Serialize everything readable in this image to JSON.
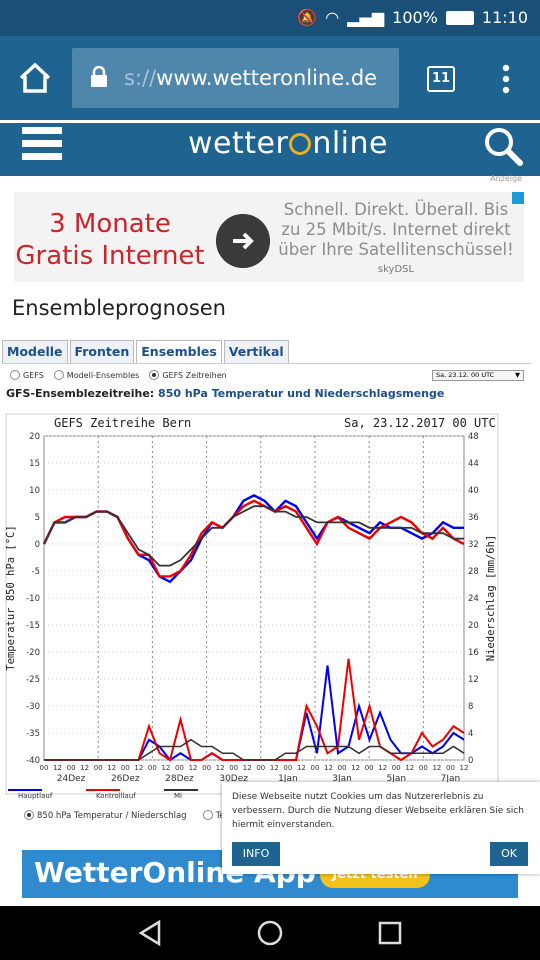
{
  "status": {
    "battery_pct": "100%",
    "time": "11:10"
  },
  "browser": {
    "url_prefix": "s://",
    "url_host": "www.wetteronline.de",
    "tab_count": "11"
  },
  "site": {
    "logo_text": "wetteronline"
  },
  "ad": {
    "label": "Anzeige",
    "left_line1": "3 Monate",
    "left_line2": "Gratis Internet",
    "right_text": "Schnell. Direkt. Überall. Bis zu 25 Mbit/s. Internet direkt über Ihre Satellitenschüssel!",
    "brand": "skyDSL"
  },
  "page_title": "Ensembleprognosen",
  "tabs": [
    {
      "label": "Modelle"
    },
    {
      "label": "Fronten"
    },
    {
      "label": "Ensembles"
    },
    {
      "label": "Vertikal"
    }
  ],
  "radio_options": [
    {
      "label": "GEFS",
      "selected": false
    },
    {
      "label": "Modell-Ensembles",
      "selected": false
    },
    {
      "label": "GEFS Zeitreihen",
      "selected": true
    }
  ],
  "date_select": "Sa, 23.12. 00 UTC",
  "subheading": {
    "prefix": "GFS-Ensemblezeitreihe:",
    "value": "850 hPa Temperatur und Niederschlagsmenge"
  },
  "chart_data": {
    "type": "line",
    "title": "GEFS Zeitreihe Bern",
    "date": "Sa, 23.12.2017 00 UTC",
    "ylabel_left": "Temperatur 850 hPa [°C]",
    "ylabel_right": "Niederschlag [mm/6h]",
    "ylim_left": [
      -40,
      20
    ],
    "ylim_right": [
      0,
      48
    ],
    "yticks_left": [
      20,
      15,
      10,
      5,
      0,
      -5,
      -10,
      -15,
      -20,
      -25,
      -30,
      -35,
      -40
    ],
    "yticks_right": [
      48,
      44,
      40,
      36,
      32,
      28,
      24,
      20,
      16,
      12,
      8,
      4,
      0
    ],
    "day_labels": [
      "24Dez",
      "26Dez",
      "28Dez",
      "30Dez",
      "1Jan",
      "3Jan",
      "5Jan",
      "7Jan"
    ],
    "hour_labels": [
      "00",
      "12",
      "00",
      "12",
      "00",
      "12",
      "00",
      "12",
      "00",
      "12",
      "00",
      "12",
      "00",
      "12",
      "00",
      "12",
      "00",
      "12",
      "00",
      "12",
      "00",
      "12",
      "00",
      "12",
      "00",
      "12",
      "00",
      "12",
      "00",
      "12",
      "00",
      "12"
    ],
    "temperature_series": [
      {
        "name": "Hauptlauf",
        "color": "#0000ee",
        "values": [
          0,
          4,
          4,
          5,
          5,
          6,
          6,
          5,
          1,
          -2,
          -3,
          -6,
          -7,
          -5,
          -3,
          1,
          4,
          3,
          5,
          8,
          9,
          8,
          6,
          8,
          7,
          4,
          1,
          4,
          5,
          4,
          3,
          2,
          4,
          3,
          3,
          2,
          1,
          2,
          4,
          3,
          3
        ]
      },
      {
        "name": "Kontrolllauf",
        "color": "#ee0000",
        "values": [
          0,
          4,
          5,
          5,
          5,
          6,
          6,
          5,
          1,
          -2,
          -2,
          -6,
          -6,
          -5,
          -2,
          2,
          4,
          3,
          5,
          7,
          8,
          7,
          6,
          7,
          6,
          3,
          0,
          4,
          5,
          3,
          2,
          1,
          3,
          4,
          5,
          4,
          2,
          1,
          3,
          1,
          0
        ]
      },
      {
        "name": "Mittel",
        "color": "#333333",
        "values": [
          0,
          4,
          4,
          5,
          5,
          6,
          6,
          5,
          2,
          -1,
          -2,
          -4,
          -4,
          -3,
          -1,
          1,
          3,
          3,
          5,
          6,
          7,
          7,
          6,
          6,
          5,
          5,
          4,
          4,
          4,
          4,
          4,
          3,
          3,
          3,
          3,
          3,
          2,
          2,
          2,
          1,
          1
        ]
      }
    ],
    "precipitation_series": [
      {
        "name": "Hauptlauf",
        "color": "#0000ee",
        "values": [
          0,
          0,
          0,
          0,
          0,
          0,
          0,
          0,
          0,
          0,
          3,
          2,
          0,
          1,
          0,
          0,
          1,
          0,
          0,
          0,
          0,
          0,
          0,
          0,
          0,
          7,
          1,
          14,
          1,
          2,
          8,
          3,
          7,
          3,
          1,
          1,
          2,
          1,
          2,
          4,
          3
        ]
      },
      {
        "name": "Kontrolllauf",
        "color": "#ee0000",
        "values": [
          0,
          0,
          0,
          0,
          0,
          0,
          0,
          0,
          0,
          0,
          5,
          1,
          0,
          6,
          0,
          0,
          1,
          0,
          0,
          0,
          0,
          0,
          0,
          0,
          0,
          8,
          5,
          1,
          2,
          15,
          3,
          8,
          2,
          1,
          0,
          1,
          4,
          2,
          3,
          5,
          4
        ]
      },
      {
        "name": "Mittel",
        "color": "#333333",
        "values": [
          0,
          0,
          0,
          0,
          0,
          0,
          0,
          0,
          0,
          0,
          1,
          2,
          2,
          2,
          3,
          2,
          2,
          1,
          1,
          0,
          0,
          0,
          0,
          1,
          1,
          2,
          2,
          2,
          2,
          2,
          1,
          2,
          2,
          1,
          1,
          1,
          1,
          1,
          1,
          2,
          1
        ]
      }
    ],
    "legend": [
      "Hauptlauf",
      "Kontrolllauf",
      "Mi"
    ],
    "grid": true
  },
  "below_radio": {
    "option1": "850 hPa Temperatur / Niederschlag",
    "option2": "Te"
  },
  "cookie": {
    "text": "Diese Webseite nutzt Cookies um das Nutzererlebnis zu verbessern. Durch die Nutzung dieser Webseite erklären Sie sich hiermit einverstanden.",
    "info_label": "INFO",
    "ok_label": "OK"
  },
  "bottom_ad": {
    "title": "WetterOnline App",
    "button": "Jetzt testen"
  }
}
